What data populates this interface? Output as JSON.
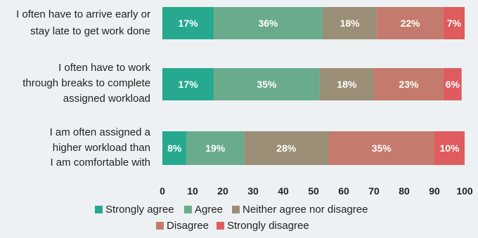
{
  "chart_data": {
    "type": "bar",
    "orientation": "horizontal",
    "stacked": true,
    "categories": [
      [
        "I often have to arrive early or",
        "stay late to get work done"
      ],
      [
        "I often have to work",
        "through breaks to complete",
        "assigned workload"
      ],
      [
        "I am often assigned a",
        "higher workload than",
        "I am comfortable with"
      ]
    ],
    "series": [
      {
        "name": "Strongly agree",
        "color": "#26a98f",
        "values": [
          17,
          17,
          8
        ]
      },
      {
        "name": "Agree",
        "color": "#6aab8c",
        "values": [
          36,
          35,
          19
        ]
      },
      {
        "name": "Neither agree nor disagree",
        "color": "#9a8f76",
        "values": [
          18,
          18,
          28
        ]
      },
      {
        "name": "Disagree",
        "color": "#c47a6c",
        "values": [
          22,
          23,
          35
        ]
      },
      {
        "name": "Strongly disagree",
        "color": "#de5c5e",
        "values": [
          7,
          6,
          10
        ]
      }
    ],
    "xticks": [
      0,
      10,
      20,
      30,
      40,
      50,
      60,
      70,
      80,
      90,
      100
    ],
    "xlim": [
      0,
      100
    ],
    "grid": false,
    "legend_position": "bottom",
    "title": "",
    "xlabel": "",
    "ylabel": ""
  }
}
